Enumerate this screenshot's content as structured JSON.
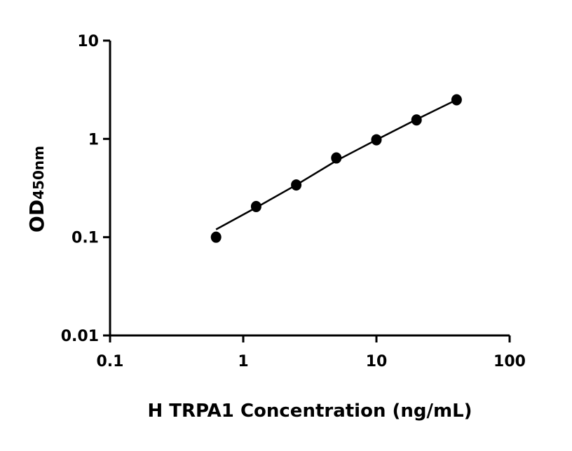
{
  "chart_data": {
    "type": "scatter",
    "title": "",
    "xlabel": "H TRPA1 Concentration (ng/mL)",
    "ylabel": "OD",
    "ylabel_subscript": "450nm",
    "x_scale": "log",
    "y_scale": "log",
    "xlim": [
      0.1,
      100
    ],
    "ylim": [
      0.01,
      10
    ],
    "x_ticks": [
      "0.1",
      "1",
      "10",
      "100"
    ],
    "y_ticks": [
      "0.01",
      "0.1",
      "1",
      "10"
    ],
    "grid": false,
    "legend": "none",
    "color": "#000000",
    "points": [
      {
        "x": 0.625,
        "y": 0.1
      },
      {
        "x": 1.25,
        "y": 0.205
      },
      {
        "x": 2.5,
        "y": 0.34
      },
      {
        "x": 5,
        "y": 0.64
      },
      {
        "x": 10,
        "y": 0.98
      },
      {
        "x": 20,
        "y": 1.56
      },
      {
        "x": 40,
        "y": 2.5
      }
    ],
    "fit_curve": [
      {
        "x": 0.625,
        "y": 0.12
      },
      {
        "x": 1.25,
        "y": 0.2
      },
      {
        "x": 2.5,
        "y": 0.34
      },
      {
        "x": 5,
        "y": 0.6
      },
      {
        "x": 10,
        "y": 0.98
      },
      {
        "x": 20,
        "y": 1.58
      },
      {
        "x": 40,
        "y": 2.5
      }
    ]
  }
}
